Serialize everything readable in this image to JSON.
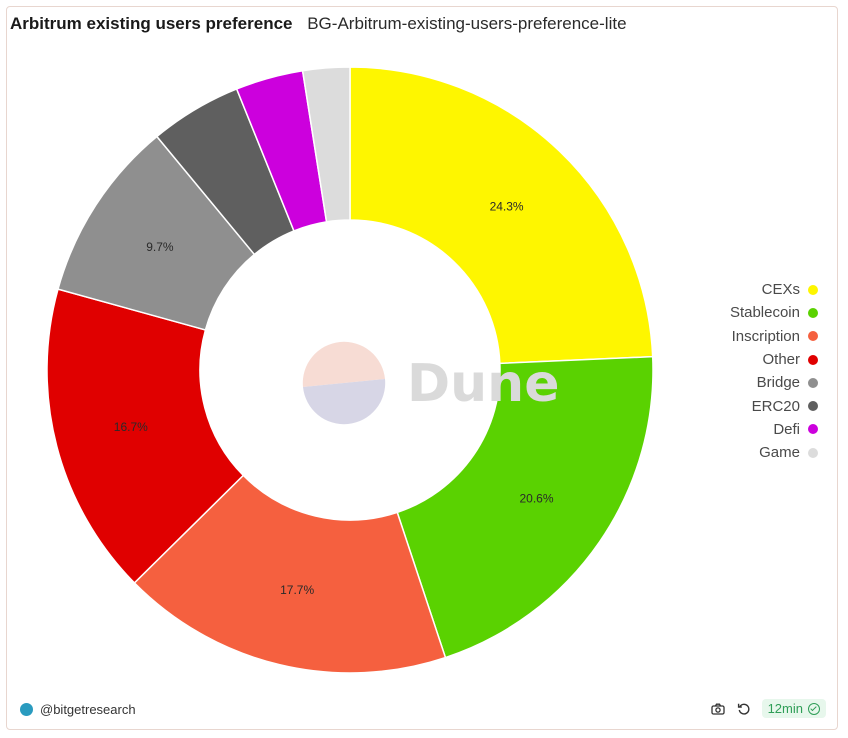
{
  "header": {
    "title": "Arbitrum existing users preference",
    "subtitle": "BG-Arbitrum-existing-users-preference-lite"
  },
  "chart_data": {
    "type": "pie",
    "donut": true,
    "categories": [
      "CEXs",
      "Stablecoin",
      "Inscription",
      "Other",
      "Bridge",
      "ERC20",
      "Defi",
      "Game"
    ],
    "values": [
      24.3,
      20.6,
      17.7,
      16.7,
      9.7,
      4.9,
      3.6,
      2.5
    ],
    "data_labels": [
      "24.3%",
      "20.6%",
      "17.7%",
      "16.7%",
      "9.7%",
      "",
      "",
      ""
    ],
    "colors": [
      "#fef600",
      "#5ad201",
      "#f5603f",
      "#e00000",
      "#8f8f8f",
      "#5f5f5f",
      "#cc00dd",
      "#dcdcdc"
    ],
    "legend_position": "right"
  },
  "watermark": {
    "text": "Dune"
  },
  "footer": {
    "account": "@bitgetresearch",
    "refresh_badge": "12min",
    "camera_icon": "camera-icon",
    "refresh_icon": "refresh-icon"
  }
}
